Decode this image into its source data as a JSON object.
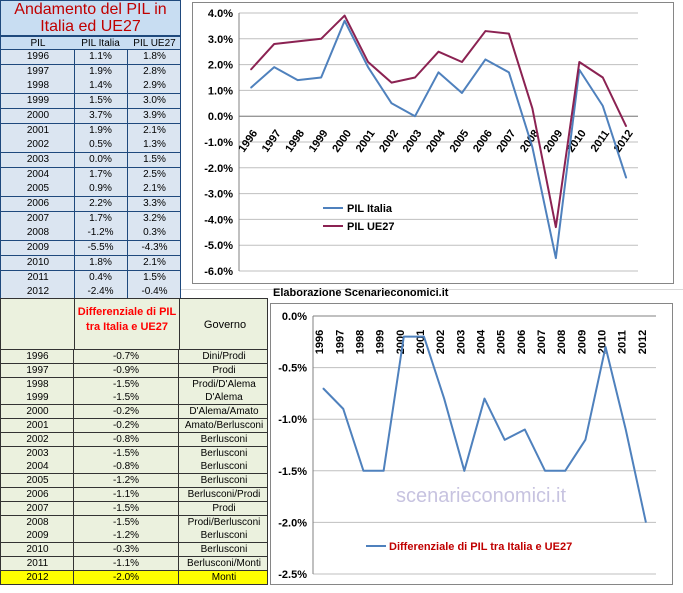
{
  "table1": {
    "title": "Andamento del PIL in Italia ed UE27",
    "headers": [
      "PIL",
      "PIL Italia",
      "PIL UE27"
    ],
    "rows": [
      [
        "1996",
        "1.1%",
        "1.8%"
      ],
      [
        "1997",
        "1.9%",
        "2.8%"
      ],
      [
        "1998",
        "1.4%",
        "2.9%"
      ],
      [
        "1999",
        "1.5%",
        "3.0%"
      ],
      [
        "2000",
        "3.7%",
        "3.9%"
      ],
      [
        "2001",
        "1.9%",
        "2.1%"
      ],
      [
        "2002",
        "0.5%",
        "1.3%"
      ],
      [
        "2003",
        "0.0%",
        "1.5%"
      ],
      [
        "2004",
        "1.7%",
        "2.5%"
      ],
      [
        "2005",
        "0.9%",
        "2.1%"
      ],
      [
        "2006",
        "2.2%",
        "3.3%"
      ],
      [
        "2007",
        "1.7%",
        "3.2%"
      ],
      [
        "2008",
        "-1.2%",
        "0.3%"
      ],
      [
        "2009",
        "-5.5%",
        "-4.3%"
      ],
      [
        "2010",
        "1.8%",
        "2.1%"
      ],
      [
        "2011",
        "0.4%",
        "1.5%"
      ],
      [
        "2012",
        "-2.4%",
        "-0.4%"
      ]
    ]
  },
  "table2": {
    "headers": [
      "",
      "Differenziale di PIL tra Italia e UE27",
      "Governo"
    ],
    "rows": [
      [
        "1996",
        "-0.7%",
        "Dini/Prodi"
      ],
      [
        "1997",
        "-0.9%",
        "Prodi"
      ],
      [
        "1998",
        "-1.5%",
        "Prodi/D'Alema"
      ],
      [
        "1999",
        "-1.5%",
        "D'Alema"
      ],
      [
        "2000",
        "-0.2%",
        "D'Alema/Amato"
      ],
      [
        "2001",
        "-0.2%",
        "Amato/Berlusconi"
      ],
      [
        "2002",
        "-0.8%",
        "Berlusconi"
      ],
      [
        "2003",
        "-1.5%",
        "Berlusconi"
      ],
      [
        "2004",
        "-0.8%",
        "Berlusconi"
      ],
      [
        "2005",
        "-1.2%",
        "Berlusconi"
      ],
      [
        "2006",
        "-1.1%",
        "Berlusconi/Prodi"
      ],
      [
        "2007",
        "-1.5%",
        "Prodi"
      ],
      [
        "2008",
        "-1.5%",
        "Prodi/Berlusconi"
      ],
      [
        "2009",
        "-1.2%",
        "Berlusconi"
      ],
      [
        "2010",
        "-0.3%",
        "Berlusconi"
      ],
      [
        "2011",
        "-1.1%",
        "Berlusconi/Monti"
      ],
      [
        "2012",
        "-2.0%",
        "Monti"
      ]
    ],
    "highlight_row": 16,
    "highlight_color": "#ffff00"
  },
  "credit": "Elaborazione Scenarieconomici.it",
  "watermark": "scenarieconomici.it",
  "colors": {
    "italia": "#4f81bd",
    "ue27": "#8b2252",
    "diff": "#4f81bd",
    "title_red": "#c00000",
    "table1_bg": "#dbe5f1",
    "table2_bg": "#ebf1de"
  },
  "chart_data": [
    {
      "type": "line",
      "x": [
        "1996",
        "1997",
        "1998",
        "1999",
        "2000",
        "2001",
        "2002",
        "2003",
        "2004",
        "2005",
        "2006",
        "2007",
        "2008",
        "2009",
        "2010",
        "2011",
        "2012"
      ],
      "series": [
        {
          "name": "PIL Italia",
          "values": [
            1.1,
            1.9,
            1.4,
            1.5,
            3.7,
            1.9,
            0.5,
            0.0,
            1.7,
            0.9,
            2.2,
            1.7,
            -1.2,
            -5.5,
            1.8,
            0.4,
            -2.4
          ]
        },
        {
          "name": "PIL UE27",
          "values": [
            1.8,
            2.8,
            2.9,
            3.0,
            3.9,
            2.1,
            1.3,
            1.5,
            2.5,
            2.1,
            3.3,
            3.2,
            0.3,
            -4.3,
            2.1,
            1.5,
            -0.4
          ]
        }
      ],
      "ylim": [
        -6.0,
        4.0
      ],
      "yticks": [
        "4.0%",
        "3.0%",
        "2.0%",
        "1.0%",
        "0.0%",
        "-1.0%",
        "-2.0%",
        "-3.0%",
        "-4.0%",
        "-5.0%",
        "-6.0%"
      ],
      "legend": "bottom-left"
    },
    {
      "type": "line",
      "x": [
        "1996",
        "1997",
        "1998",
        "1999",
        "2000",
        "2001",
        "2002",
        "2003",
        "2004",
        "2005",
        "2006",
        "2007",
        "2008",
        "2009",
        "2010",
        "2011",
        "2012"
      ],
      "series": [
        {
          "name": "Differenziale di PIL tra Italia e UE27",
          "values": [
            -0.7,
            -0.9,
            -1.5,
            -1.5,
            -0.2,
            -0.2,
            -0.8,
            -1.5,
            -0.8,
            -1.2,
            -1.1,
            -1.5,
            -1.5,
            -1.2,
            -0.3,
            -1.1,
            -2.0
          ]
        }
      ],
      "ylim": [
        -2.5,
        0.0
      ],
      "yticks": [
        "0.0%",
        "-0.5%",
        "-1.0%",
        "-1.5%",
        "-2.0%",
        "-2.5%"
      ],
      "legend": "bottom"
    }
  ]
}
